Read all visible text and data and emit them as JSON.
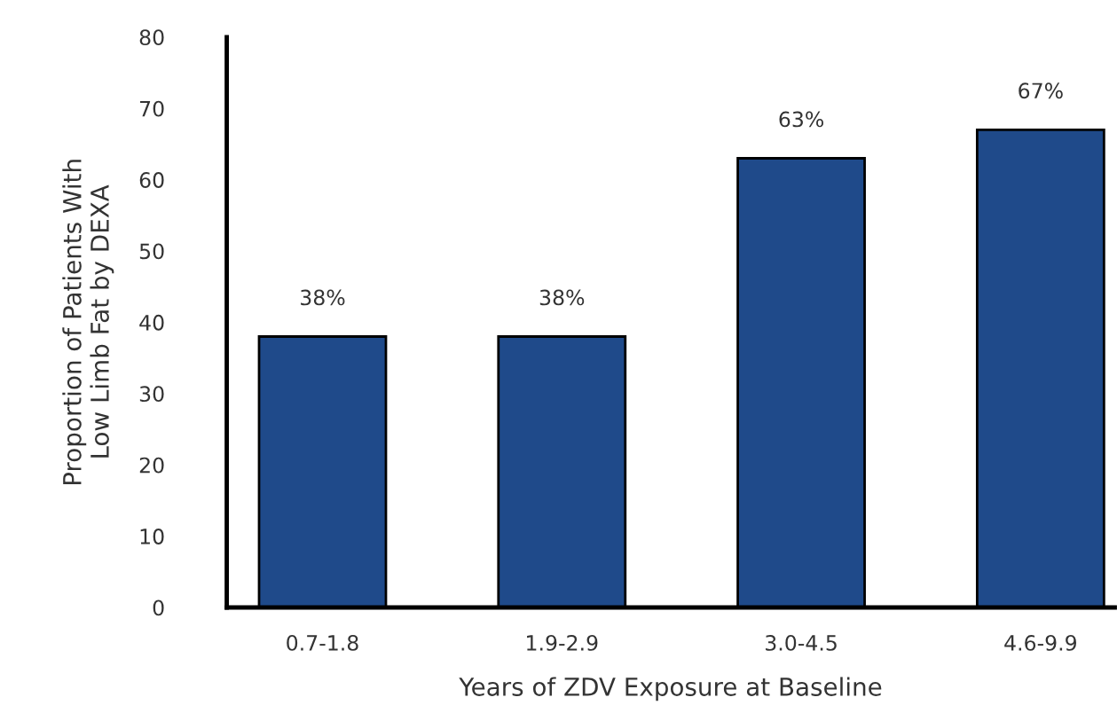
{
  "chart_data": {
    "type": "bar",
    "xlabel": "Years of ZDV Exposure at Baseline",
    "ylabel": "Proportion of Patients With\nLow Limb Fat by DEXA",
    "categories": [
      "0.7-1.8",
      "1.9-2.9",
      "3.0-4.5",
      "4.6-9.9"
    ],
    "values": [
      38,
      38,
      63,
      67
    ],
    "value_labels": [
      "38%",
      "38%",
      "63%",
      "67%"
    ],
    "color": "#1f4a8a",
    "ylim": [
      0,
      80
    ],
    "yticks": [
      0,
      10,
      20,
      30,
      40,
      50,
      60,
      70,
      80
    ],
    "grid": false
  }
}
